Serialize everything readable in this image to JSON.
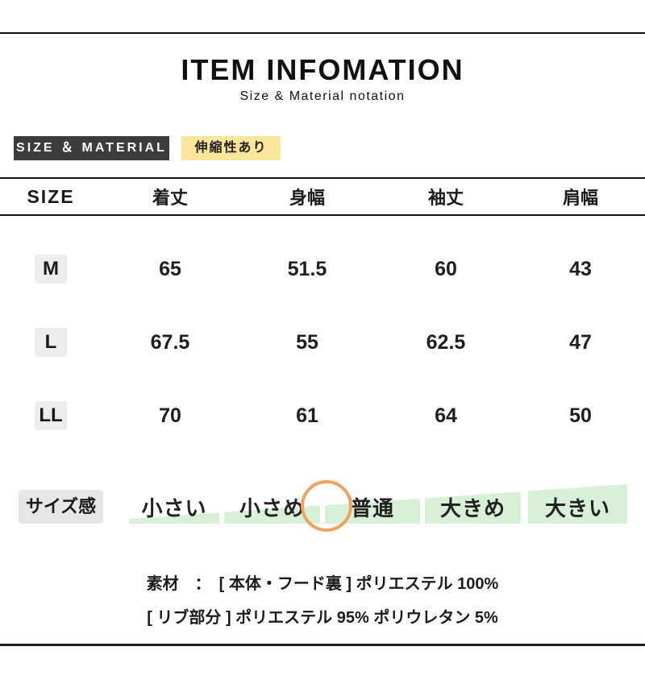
{
  "header": {
    "title": "ITEM INFOMATION",
    "subtitle": "Size & Material notation"
  },
  "badges": {
    "section_label": "SIZE ＆ MATERIAL",
    "stretch_label": "伸縮性あり"
  },
  "table": {
    "headers": [
      "SIZE",
      "着丈",
      "身幅",
      "袖丈",
      "肩幅"
    ],
    "rows": [
      {
        "size": "M",
        "values": [
          "65",
          "51.5",
          "60",
          "43"
        ]
      },
      {
        "size": "L",
        "values": [
          "67.5",
          "55",
          "62.5",
          "47"
        ]
      },
      {
        "size": "LL",
        "values": [
          "70",
          "61",
          "64",
          "50"
        ]
      }
    ]
  },
  "size_feel": {
    "label": "サイズ感",
    "scale": [
      "小さい",
      "小さめ",
      "普通",
      "大きめ",
      "大きい"
    ],
    "marker_position": "between 小さめ and 普通"
  },
  "material": {
    "line1": "素材　：　[ 本体・フード裏 ] ポリエステル 100%",
    "line2": "[ リブ部分 ] ポリエステル 95% ポリウレタン 5%"
  },
  "colors": {
    "accent_dark_badge": "#3c3c3c",
    "accent_yellow": "#f9e69b",
    "scale_green": "#d8efd8",
    "marker_orange": "#f0a360",
    "gray_badge": "#ededed"
  }
}
